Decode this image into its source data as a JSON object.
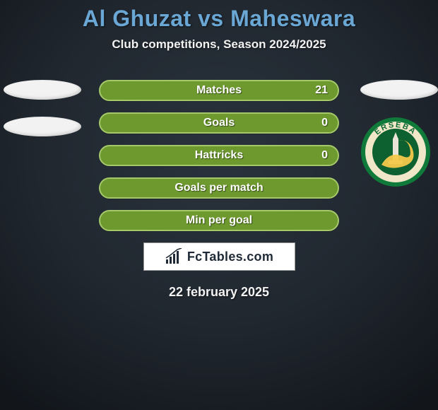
{
  "colors": {
    "bg_gradient_top": "#181d23",
    "bg_gradient_mid": "#2a333d",
    "bg_gradient_bot": "#181d23",
    "title_color": "#6aa7d4",
    "subtitle_color": "#f2f2f2",
    "pill_bg": "#6d992f",
    "pill_border": "#a4c86a",
    "pill_text": "#ffffff",
    "brand_text": "#1f2a36",
    "date_color": "#f2f2f2",
    "ellipse_bg": "#f2f2f2",
    "crest_outer": "#0f7a3a",
    "crest_ring": "#f0e6c8",
    "crest_ring_text": "#106a36",
    "crest_inner": "#0d6030",
    "crest_accent": "#f3c84b"
  },
  "title": "Al Ghuzat vs Maheswara",
  "subtitle": "Club competitions, Season 2024/2025",
  "stats": [
    {
      "label": "Matches",
      "value": "21"
    },
    {
      "label": "Goals",
      "value": "0"
    },
    {
      "label": "Hattricks",
      "value": "0"
    },
    {
      "label": "Goals per match",
      "value": ""
    },
    {
      "label": "Min per goal",
      "value": ""
    }
  ],
  "left_placeholders": 2,
  "right_placeholders": 1,
  "crest_text": "ERSEBA",
  "brand": "FcTables.com",
  "date": "22 february 2025",
  "layout": {
    "pill_width": 340,
    "pill_height": 30,
    "pill_radius": 15,
    "pill_gap": 16,
    "pill_fontsize": 16,
    "title_fontsize": 32,
    "subtitle_fontsize": 17,
    "date_fontsize": 18
  }
}
